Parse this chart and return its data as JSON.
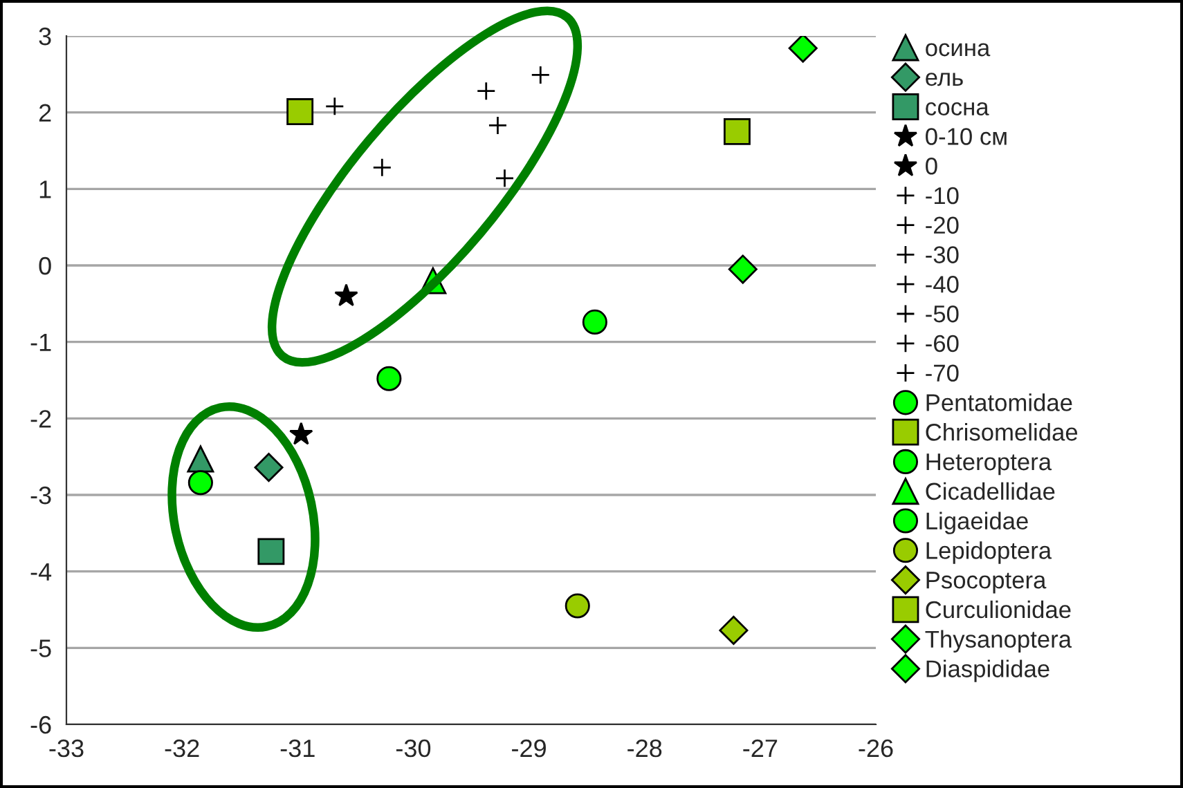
{
  "chart_data": {
    "type": "scatter",
    "xlim": [
      -33,
      -26
    ],
    "xticks": [
      -33,
      -32,
      -31,
      -30,
      -29,
      -28,
      -27,
      -26
    ],
    "ylim": [
      -6,
      3
    ],
    "yticks": [
      -6,
      -5,
      -4,
      -3,
      -2,
      -1,
      0,
      1,
      2,
      3
    ],
    "grid": "y",
    "legend": "right",
    "series": [
      {
        "name": "осина",
        "color": "#339966",
        "marker": "triangle",
        "x": [
          -31.84
        ],
        "values": [
          -2.53
        ]
      },
      {
        "name": "ель",
        "color": "#339966",
        "marker": "diamond",
        "x": [
          -31.25
        ],
        "values": [
          -2.64
        ]
      },
      {
        "name": "сосна",
        "color": "#339966",
        "marker": "square",
        "x": [
          -31.23
        ],
        "values": [
          -3.74
        ]
      },
      {
        "name": "0-10 см",
        "color": "#000000",
        "marker": "star",
        "x": [
          -30.97
        ],
        "values": [
          -2.21
        ]
      },
      {
        "name": "0",
        "color": "#000000",
        "marker": "star",
        "x": [
          -30.58
        ],
        "values": [
          -0.4
        ]
      },
      {
        "name": "-10",
        "color": "#000000",
        "marker": "cross",
        "x": [
          -30.27
        ],
        "values": [
          1.28
        ]
      },
      {
        "name": "-20",
        "color": "#000000",
        "marker": "cross",
        "x": [
          -29.27
        ],
        "values": [
          1.83
        ]
      },
      {
        "name": "-30",
        "color": "#000000",
        "marker": "cross",
        "x": [
          -29.37
        ],
        "values": [
          2.28
        ]
      },
      {
        "name": "-40",
        "color": "#000000",
        "marker": "cross",
        "x": [
          null
        ],
        "values": [
          null
        ]
      },
      {
        "name": "-50",
        "color": "#000000",
        "marker": "cross",
        "x": [
          -28.9
        ],
        "values": [
          2.49
        ]
      },
      {
        "name": "-60",
        "color": "#000000",
        "marker": "cross",
        "x": [
          -30.68
        ],
        "values": [
          2.08
        ]
      },
      {
        "name": "-70",
        "color": "#000000",
        "marker": "cross",
        "x": [
          -29.21
        ],
        "values": [
          1.14
        ]
      },
      {
        "name": "Pentatomidae",
        "color": "#00ff00",
        "marker": "circle",
        "x": [
          -31.84
        ],
        "values": [
          -2.84
        ]
      },
      {
        "name": "Chrisomelidae",
        "color": "#99cc00",
        "marker": "square",
        "x": [
          -30.98
        ],
        "values": [
          2.01
        ]
      },
      {
        "name": "Heteroptera",
        "color": "#00ff00",
        "marker": "circle",
        "x": [
          -30.21
        ],
        "values": [
          -1.48
        ]
      },
      {
        "name": "Cicadellidae",
        "color": "#00ff00",
        "marker": "triangle",
        "x": [
          -29.83
        ],
        "values": [
          -0.2
        ]
      },
      {
        "name": "Ligaeidae",
        "color": "#00ff00",
        "marker": "circle",
        "x": [
          -28.43
        ],
        "values": [
          -0.74
        ]
      },
      {
        "name": "Lepidoptera",
        "color": "#99cc00",
        "marker": "circle",
        "x": [
          -28.58
        ],
        "values": [
          -4.45
        ]
      },
      {
        "name": "Psocoptera",
        "color": "#99cc00",
        "marker": "diamond",
        "x": [
          -27.23
        ],
        "values": [
          -4.77
        ]
      },
      {
        "name": "Curculionidae",
        "color": "#99cc00",
        "marker": "square",
        "x": [
          -27.2
        ],
        "values": [
          1.75
        ]
      },
      {
        "name": "Thysanoptera",
        "color": "#00ff00",
        "marker": "diamond",
        "x": [
          -27.15
        ],
        "values": [
          -0.05
        ]
      },
      {
        "name": "Diaspididae",
        "color": "#00ff00",
        "marker": "diamond",
        "x": [
          -26.63
        ],
        "values": [
          2.84
        ]
      }
    ]
  }
}
